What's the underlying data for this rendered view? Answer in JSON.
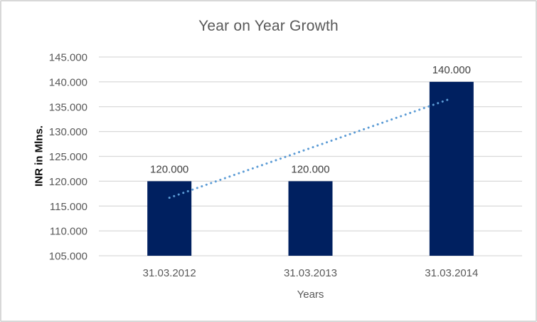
{
  "chart": {
    "title": "Year on Year Growth",
    "y_axis_title": "INR in Mlns.",
    "x_axis_title": "Years"
  },
  "chart_data": {
    "type": "bar",
    "title": "Year on Year Growth",
    "xlabel": "Years",
    "ylabel": "INR in Mlns.",
    "categories": [
      "31.03.2012",
      "31.03.2013",
      "31.03.2014"
    ],
    "values": [
      120,
      120,
      140
    ],
    "data_labels": [
      "120.000",
      "120.000",
      "140.000"
    ],
    "y_ticks": [
      "105.000",
      "110.000",
      "115.000",
      "120.000",
      "125.000",
      "130.000",
      "135.000",
      "140.000",
      "145.000"
    ],
    "ylim": [
      105,
      145
    ],
    "y_tick_step": 5,
    "grid": true,
    "legend_position": "none",
    "trendline": {
      "type": "linear",
      "style": "dotted",
      "start_value": 116.67,
      "end_value": 136.67,
      "color": "#5b9bd5"
    },
    "colors": {
      "bar": "#002060",
      "gridline": "#d9d9d9",
      "axis_text": "#595959",
      "data_label_text": "#404040",
      "title_text": "#595959",
      "border": "#d8d8d8"
    }
  }
}
